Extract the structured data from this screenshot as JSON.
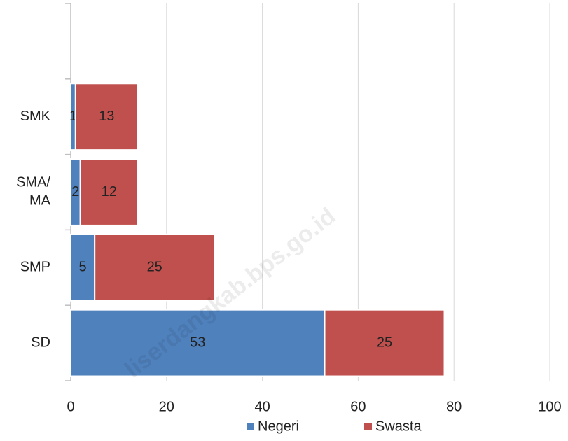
{
  "chart_data": {
    "type": "bar",
    "orientation": "horizontal",
    "stacked": true,
    "categories": [
      "SD",
      "SMP",
      "SMA/MA",
      "SMK",
      null
    ],
    "series": [
      {
        "name": "Negeri",
        "color": "#4f81bd",
        "values": [
          53,
          5,
          2,
          1,
          null
        ]
      },
      {
        "name": "Swasta",
        "color": "#c0504d",
        "values": [
          25,
          25,
          12,
          13,
          null
        ]
      }
    ],
    "xlim": [
      0,
      100
    ],
    "xticks": [
      0,
      20,
      40,
      60,
      80,
      100
    ],
    "grid": true,
    "legend": "bottom",
    "watermark": "liserdangkab.bps.go.id"
  }
}
